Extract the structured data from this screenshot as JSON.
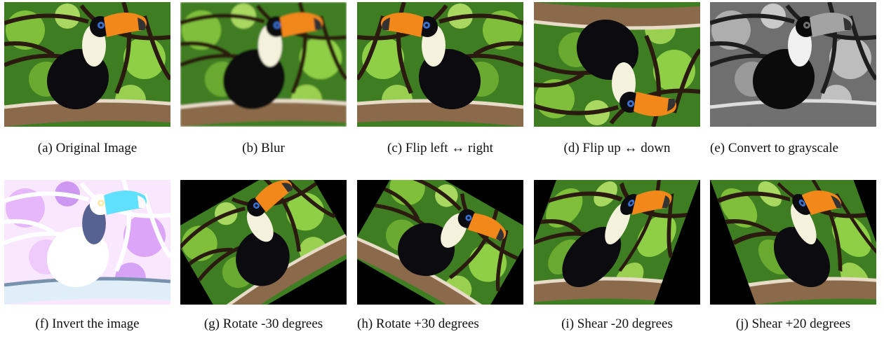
{
  "figure": {
    "panels": [
      {
        "caption": "(a) Original Image"
      },
      {
        "caption": "(b) Blur"
      },
      {
        "caption": "(c) Flip left ↔ right"
      },
      {
        "caption": "(d) Flip up ↔ down"
      },
      {
        "caption": "(e) Convert to grayscale"
      },
      {
        "caption": "(f) Invert the image"
      },
      {
        "caption": "(g) Rotate -30 degrees"
      },
      {
        "caption": "(h) Rotate +30 degrees"
      },
      {
        "caption": "(i) Shear -20 degrees"
      },
      {
        "caption": "(j) Shear +20 degrees"
      }
    ]
  }
}
